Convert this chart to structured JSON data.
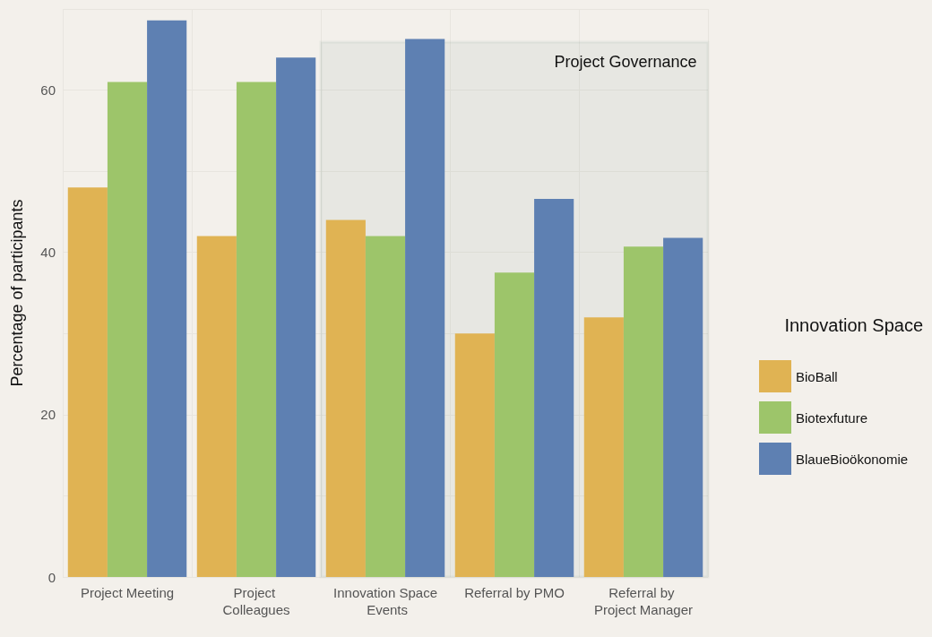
{
  "chart_data": {
    "type": "bar",
    "ylabel": "Percentage of participants",
    "legend_title": "Innovation Space",
    "categories": [
      "Project Meeting",
      "Project Colleagues",
      "Innovation Space Events",
      "Referral by PMO",
      "Referral by Project Manager"
    ],
    "series": [
      {
        "name": "BioBall",
        "color": "#e0b353",
        "values": [
          48,
          42,
          44,
          30,
          32
        ]
      },
      {
        "name": "Biotexfuture",
        "color": "#9dc56a",
        "values": [
          61,
          61,
          42,
          37.5,
          40.7
        ]
      },
      {
        "name": "BlaueBioökonomie",
        "color": "#5e80b2",
        "values": [
          68.6,
          64,
          66.3,
          46.6,
          41.8
        ]
      }
    ],
    "ylim": [
      0,
      70
    ],
    "yticks": [
      0,
      {
        "value": 10,
        "label": null
      },
      20,
      {
        "value": 30,
        "label": null
      },
      40,
      {
        "value": 50,
        "label": null
      },
      60,
      {
        "value": 70,
        "label": null
      }
    ],
    "grid": true,
    "legend": "right",
    "bands": [
      {
        "axis": "x",
        "from": "Innovation Space Events",
        "to": "Referral by Project Manager",
        "label": "Project Governance",
        "color": "#0e4a3a"
      }
    ]
  }
}
